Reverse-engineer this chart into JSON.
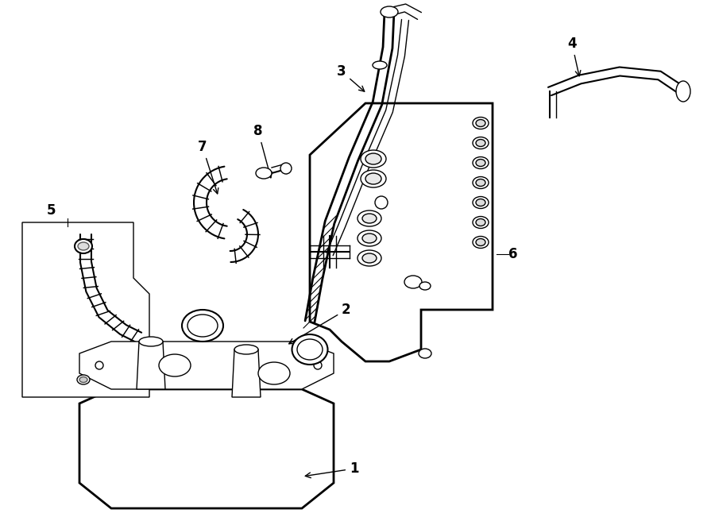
{
  "background_color": "#ffffff",
  "line_color": "#000000",
  "fig_width": 9.0,
  "fig_height": 6.61,
  "dpi": 100,
  "xlim": [
    0,
    900
  ],
  "ylim": [
    0,
    661
  ]
}
